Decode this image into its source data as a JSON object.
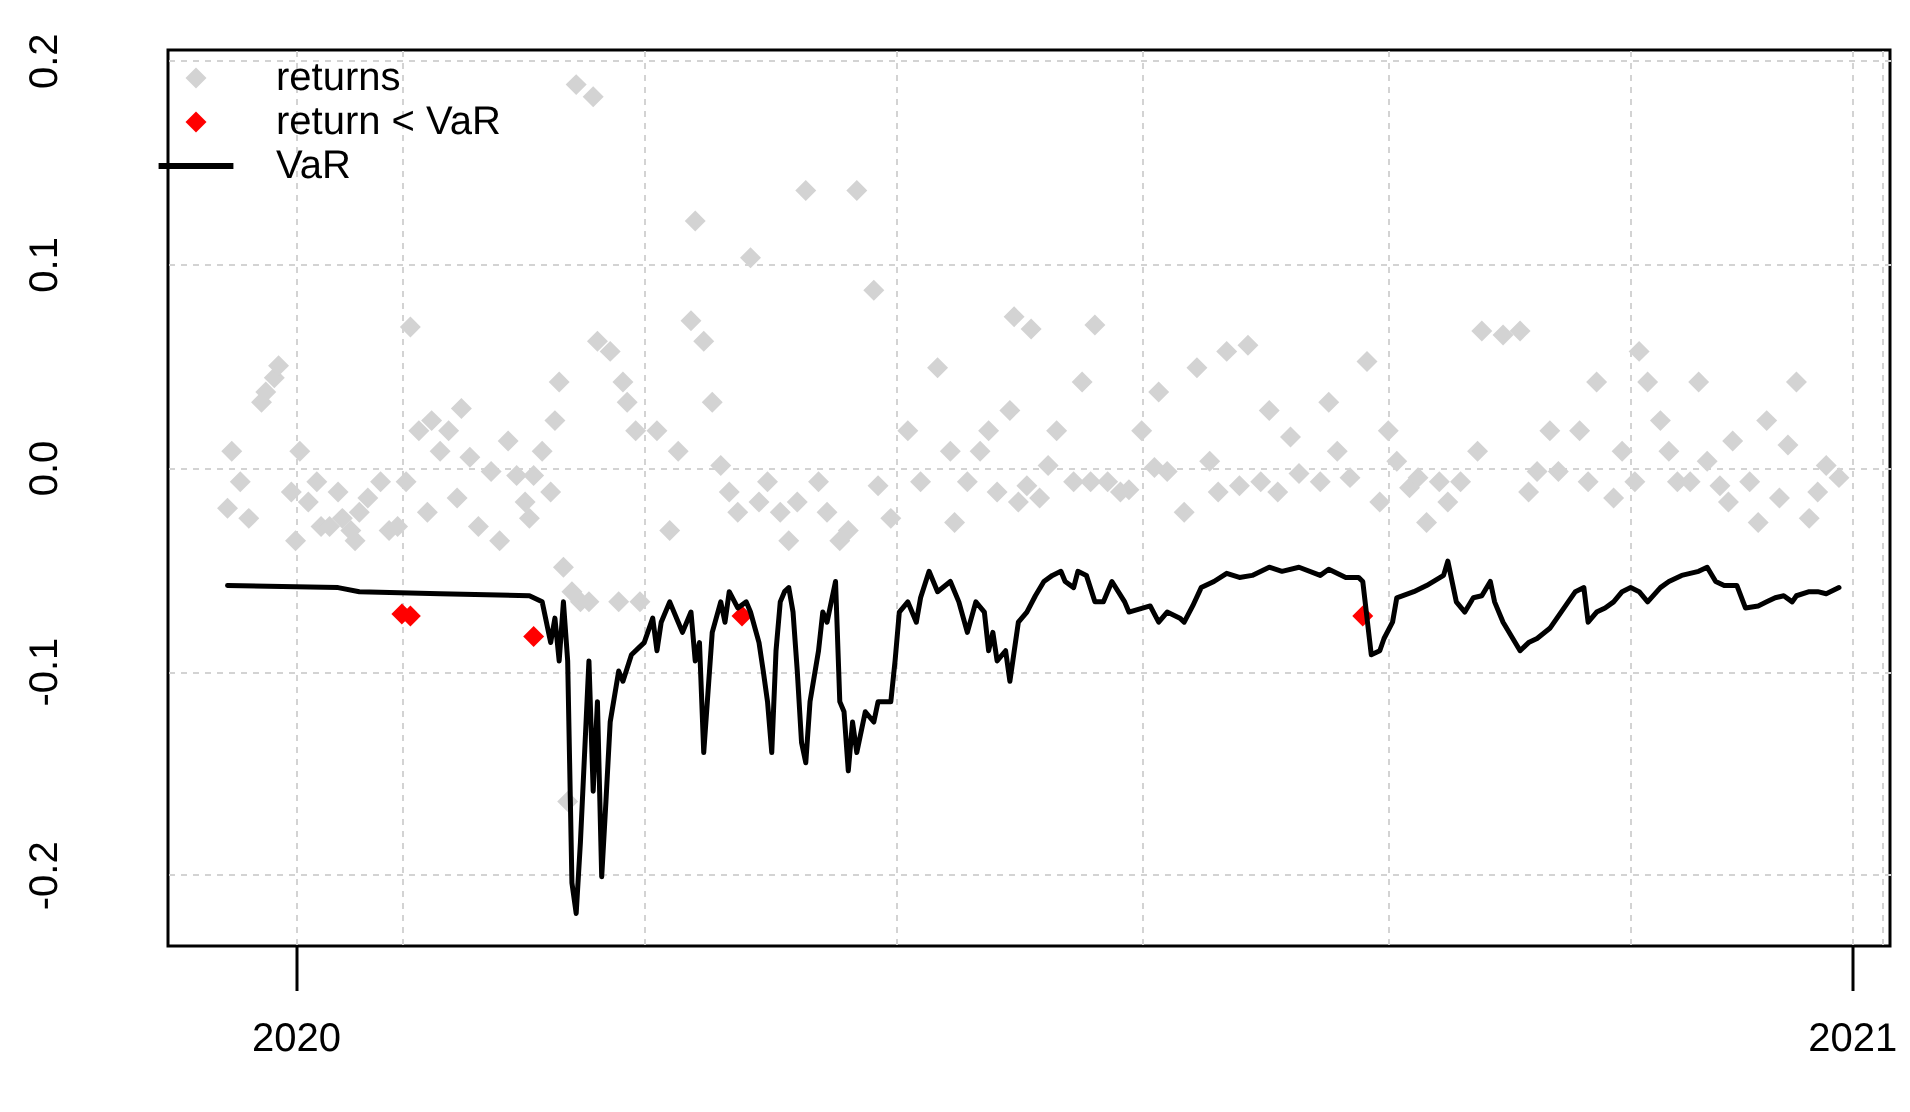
{
  "chart_data": {
    "type": "scatter",
    "xlim": [
      "2019-12-02",
      "2021-01-10"
    ],
    "xticks": [
      {
        "value": "2020",
        "label": "2020"
      },
      {
        "value": "2020-01-26",
        "label": null
      },
      {
        "value": "2020-03-23",
        "label": null
      },
      {
        "value": "2020-05-21",
        "label": null
      },
      {
        "value": "2020-07-18",
        "label": null
      },
      {
        "value": "2020-09-14",
        "label": null
      },
      {
        "value": "2020-11-10",
        "label": null
      },
      {
        "value": "2021",
        "label": "2021"
      },
      {
        "value": "2021-01-08",
        "label": null
      }
    ],
    "ylim": [
      -0.235,
      0.205
    ],
    "yticks": [
      -0.2,
      -0.1,
      {
        "value": 0,
        "label": "0.0"
      },
      0.1,
      0.2
    ],
    "grid": true,
    "legend": "top left",
    "marker": "diamond",
    "line_style": "solid",
    "series": [
      {
        "name": "returns",
        "color": "#d3d3d3",
        "x": [
          "2019-12-16",
          "2019-12-17",
          "2019-12-19",
          "2019-12-21",
          "2019-12-24",
          "2019-12-25",
          "2019-12-27",
          "2019-12-28",
          "2019-12-31",
          "2020-01-01",
          "2020-01-02",
          "2020-01-04",
          "2020-01-06",
          "2020-01-07",
          "2020-01-09",
          "2020-01-11",
          "2020-01-12",
          "2020-01-14",
          "2020-01-15",
          "2020-01-16",
          "2020-01-18",
          "2020-01-21",
          "2020-01-23",
          "2020-01-25",
          "2020-01-28",
          "2020-01-27",
          "2020-01-30",
          "2020-02-01",
          "2020-02-02",
          "2020-02-04",
          "2020-02-06",
          "2020-02-08",
          "2020-02-09",
          "2020-02-11",
          "2020-02-13",
          "2020-02-16",
          "2020-02-18",
          "2020-02-20",
          "2020-02-22",
          "2020-02-24",
          "2020-02-25",
          "2020-02-26",
          "2020-02-28",
          "2020-03-01",
          "2020-03-02",
          "2020-03-03",
          "2020-03-04",
          "2020-03-06",
          "2020-03-05",
          "2020-03-07",
          "2020-03-11",
          "2020-03-08",
          "2020-03-10",
          "2020-03-12",
          "2020-03-15",
          "2020-03-17",
          "2020-03-18",
          "2020-03-19",
          "2020-03-21",
          "2020-03-22",
          "2020-03-26",
          "2020-03-29",
          "2020-03-31",
          "2020-04-03",
          "2020-04-04",
          "2020-04-06",
          "2020-04-08",
          "2020-04-10",
          "2020-04-12",
          "2020-04-14",
          "2020-04-17",
          "2020-04-19",
          "2020-04-21",
          "2020-04-24",
          "2020-04-26",
          "2020-04-28",
          "2020-04-30",
          "2020-05-03",
          "2020-05-05",
          "2020-05-08",
          "2020-05-10",
          "2020-05-12",
          "2020-05-16",
          "2020-05-17",
          "2020-05-20",
          "2020-05-24",
          "2020-05-27",
          "2020-05-31",
          "2020-06-03",
          "2020-06-04",
          "2020-06-07",
          "2020-06-10",
          "2020-06-12",
          "2020-06-14",
          "2020-06-17",
          "2020-06-19",
          "2020-06-21",
          "2020-06-24",
          "2020-06-26",
          "2020-06-28",
          "2020-06-18",
          "2020-06-22",
          "2020-07-02",
          "2020-07-04",
          "2020-07-06",
          "2020-07-07",
          "2020-07-10",
          "2020-07-13",
          "2020-07-15",
          "2020-07-18",
          "2020-07-21",
          "2020-07-22",
          "2020-07-24",
          "2020-07-28",
          "2020-07-31",
          "2020-08-03",
          "2020-08-05",
          "2020-08-07",
          "2020-08-10",
          "2020-08-12",
          "2020-08-15",
          "2020-08-17",
          "2020-08-19",
          "2020-08-22",
          "2020-08-24",
          "2020-08-29",
          "2020-08-31",
          "2020-09-02",
          "2020-09-05",
          "2020-09-09",
          "2020-09-12",
          "2020-09-14",
          "2020-09-16",
          "2020-09-19",
          "2020-09-21",
          "2020-09-23",
          "2020-09-26",
          "2020-09-28",
          "2020-10-01",
          "2020-10-05",
          "2020-10-06",
          "2020-10-11",
          "2020-10-15",
          "2020-10-17",
          "2020-10-19",
          "2020-10-22",
          "2020-10-24",
          "2020-10-29",
          "2020-10-31",
          "2020-11-02",
          "2020-11-06",
          "2020-11-08",
          "2020-11-11",
          "2020-11-12",
          "2020-11-14",
          "2020-11-17",
          "2020-11-19",
          "2020-11-21",
          "2020-11-24",
          "2020-11-26",
          "2020-11-28",
          "2020-12-01",
          "2020-12-03",
          "2020-12-04",
          "2020-12-08",
          "2020-12-10",
          "2020-12-12",
          "2020-12-15",
          "2020-12-17",
          "2020-12-19",
          "2020-12-22",
          "2020-12-24",
          "2020-12-26",
          "2020-12-29"
        ],
        "values": [
          -0.02,
          0.008,
          -0.007,
          -0.025,
          0.032,
          0.037,
          0.044,
          0.05,
          -0.012,
          -0.036,
          0.008,
          -0.017,
          -0.007,
          -0.029,
          -0.029,
          -0.012,
          -0.025,
          -0.031,
          -0.036,
          -0.022,
          -0.015,
          -0.007,
          -0.031,
          -0.029,
          0.069,
          -0.007,
          0.018,
          -0.022,
          0.023,
          0.008,
          0.018,
          -0.015,
          0.029,
          0.005,
          -0.029,
          -0.002,
          -0.036,
          0.013,
          -0.004,
          -0.017,
          -0.025,
          -0.004,
          0.008,
          -0.012,
          0.023,
          0.042,
          -0.049,
          -0.061,
          -0.164,
          0.188,
          0.182,
          -0.066,
          -0.066,
          0.062,
          0.057,
          -0.066,
          0.042,
          0.032,
          0.018,
          -0.066,
          0.018,
          -0.031,
          0.008,
          0.072,
          0.121,
          0.062,
          0.032,
          0.001,
          -0.012,
          -0.022,
          0.103,
          -0.017,
          -0.007,
          -0.022,
          -0.036,
          -0.017,
          0.136,
          -0.007,
          -0.022,
          -0.036,
          -0.031,
          0.136,
          0.087,
          -0.009,
          -0.025,
          0.018,
          -0.007,
          0.049,
          0.008,
          -0.027,
          -0.007,
          0.008,
          0.018,
          -0.012,
          0.028,
          -0.017,
          -0.009,
          -0.015,
          0.001,
          0.018,
          0.074,
          0.068,
          -0.007,
          0.042,
          -0.007,
          0.07,
          -0.007,
          -0.012,
          -0.011,
          0.018,
          0.0,
          0.037,
          -0.002,
          -0.022,
          0.049,
          0.003,
          -0.012,
          0.057,
          -0.009,
          0.06,
          -0.007,
          0.028,
          -0.012,
          0.015,
          -0.003,
          -0.007,
          0.032,
          0.008,
          -0.005,
          0.052,
          -0.017,
          0.018,
          0.003,
          -0.01,
          -0.005,
          -0.027,
          -0.007,
          -0.017,
          -0.007,
          0.008,
          0.067,
          0.065,
          0.067,
          -0.012,
          -0.002,
          0.018,
          -0.002,
          0.018,
          -0.007,
          0.042,
          -0.015,
          0.008,
          -0.007,
          0.057,
          0.042,
          0.023,
          0.008,
          -0.007,
          -0.007,
          0.042,
          0.003,
          -0.009,
          -0.017,
          0.013,
          -0.007,
          -0.027,
          0.023,
          -0.015,
          0.011,
          0.042,
          -0.025,
          -0.012,
          0.001,
          -0.005
        ]
      },
      {
        "name": "return < VaR",
        "color": "#ff0000",
        "x": [
          "2020-01-26",
          "2020-01-28",
          "2020-02-26",
          "2020-04-15",
          "2020-09-08"
        ],
        "values": [
          -0.072,
          -0.073,
          -0.083,
          -0.073,
          -0.073
        ]
      },
      {
        "name": "VaR",
        "type": "line",
        "marker": "none",
        "color": "#000000",
        "x": [
          "2019-12-16",
          "2020-01-11",
          "2020-01-16",
          "2020-02-04",
          "2020-02-25",
          "2020-02-28",
          "2020-03-01",
          "2020-03-02",
          "2020-03-03",
          "2020-03-04",
          "2020-03-05",
          "2020-03-06",
          "2020-03-07",
          "2020-03-08",
          "2020-03-10",
          "2020-03-11",
          "2020-03-12",
          "2020-03-13",
          "2020-03-14",
          "2020-03-15",
          "2020-03-17",
          "2020-03-18",
          "2020-03-20",
          "2020-03-22",
          "2020-03-23",
          "2020-03-25",
          "2020-03-26",
          "2020-03-27",
          "2020-03-29",
          "2020-03-31",
          "2020-04-01",
          "2020-04-03",
          "2020-04-04",
          "2020-04-05",
          "2020-04-06",
          "2020-04-08",
          "2020-04-10",
          "2020-04-11",
          "2020-04-12",
          "2020-04-14",
          "2020-04-16",
          "2020-04-17",
          "2020-04-19",
          "2020-04-20",
          "2020-04-21",
          "2020-04-22",
          "2020-04-23",
          "2020-04-24",
          "2020-04-25",
          "2020-04-26",
          "2020-04-27",
          "2020-04-28",
          "2020-04-29",
          "2020-04-30",
          "2020-05-01",
          "2020-05-03",
          "2020-05-04",
          "2020-05-05",
          "2020-05-06",
          "2020-05-07",
          "2020-05-08",
          "2020-05-09",
          "2020-05-10",
          "2020-05-11",
          "2020-05-12",
          "2020-05-14",
          "2020-05-16",
          "2020-05-17",
          "2020-05-20",
          "2020-05-21",
          "2020-05-22",
          "2020-05-24",
          "2020-05-26",
          "2020-05-27",
          "2020-05-29",
          "2020-05-31",
          "2020-06-03",
          "2020-06-05",
          "2020-06-07",
          "2020-06-09",
          "2020-06-11",
          "2020-06-12",
          "2020-06-13",
          "2020-06-14",
          "2020-06-16",
          "2020-06-17",
          "2020-06-19",
          "2020-06-21",
          "2020-06-23",
          "2020-06-25",
          "2020-06-27",
          "2020-06-29",
          "2020-06-30",
          "2020-07-02",
          "2020-07-03",
          "2020-07-05",
          "2020-07-07",
          "2020-07-09",
          "2020-07-11",
          "2020-07-14",
          "2020-07-15",
          "2020-07-20",
          "2020-07-22",
          "2020-07-24",
          "2020-07-27",
          "2020-07-28",
          "2020-07-30",
          "2020-08-01",
          "2020-08-04",
          "2020-08-07",
          "2020-08-10",
          "2020-08-13",
          "2020-08-17",
          "2020-08-20",
          "2020-08-24",
          "2020-08-29",
          "2020-08-31",
          "2020-09-04",
          "2020-09-07",
          "2020-09-08",
          "2020-09-10",
          "2020-09-12",
          "2020-09-13",
          "2020-09-15",
          "2020-09-16",
          "2020-09-20",
          "2020-09-23",
          "2020-09-27",
          "2020-09-28",
          "2020-09-30",
          "2020-10-02",
          "2020-10-04",
          "2020-10-06",
          "2020-10-08",
          "2020-10-09",
          "2020-10-11",
          "2020-10-13",
          "2020-10-15",
          "2020-10-17",
          "2020-10-19",
          "2020-10-22",
          "2020-10-24",
          "2020-10-26",
          "2020-10-28",
          "2020-10-30",
          "2020-10-31",
          "2020-11-02",
          "2020-11-04",
          "2020-11-06",
          "2020-11-08",
          "2020-11-10",
          "2020-11-12",
          "2020-11-14",
          "2020-11-17",
          "2020-11-19",
          "2020-11-22",
          "2020-11-26",
          "2020-11-28",
          "2020-11-30",
          "2020-12-02",
          "2020-12-05",
          "2020-12-07",
          "2020-12-10",
          "2020-12-12",
          "2020-12-14",
          "2020-12-16",
          "2020-12-18",
          "2020-12-19",
          "2020-12-22",
          "2020-12-24",
          "2020-12-26",
          "2020-12-29"
        ],
        "values": [
          -0.058,
          -0.059,
          -0.061,
          -0.062,
          -0.063,
          -0.066,
          -0.086,
          -0.074,
          -0.095,
          -0.066,
          -0.095,
          -0.204,
          -0.219,
          -0.184,
          -0.095,
          -0.159,
          -0.115,
          -0.201,
          -0.164,
          -0.125,
          -0.1,
          -0.105,
          -0.092,
          -0.088,
          -0.086,
          -0.074,
          -0.09,
          -0.076,
          -0.066,
          -0.076,
          -0.081,
          -0.071,
          -0.095,
          -0.086,
          -0.14,
          -0.081,
          -0.066,
          -0.076,
          -0.061,
          -0.069,
          -0.066,
          -0.071,
          -0.086,
          -0.1,
          -0.115,
          -0.14,
          -0.09,
          -0.066,
          -0.061,
          -0.059,
          -0.071,
          -0.1,
          -0.135,
          -0.145,
          -0.115,
          -0.09,
          -0.071,
          -0.076,
          -0.066,
          -0.056,
          -0.115,
          -0.12,
          -0.149,
          -0.125,
          -0.14,
          -0.12,
          -0.125,
          -0.115,
          -0.115,
          -0.095,
          -0.071,
          -0.066,
          -0.076,
          -0.064,
          -0.051,
          -0.061,
          -0.056,
          -0.066,
          -0.081,
          -0.066,
          -0.071,
          -0.09,
          -0.081,
          -0.095,
          -0.09,
          -0.105,
          -0.076,
          -0.071,
          -0.063,
          -0.056,
          -0.053,
          -0.051,
          -0.056,
          -0.059,
          -0.051,
          -0.053,
          -0.066,
          -0.066,
          -0.056,
          -0.066,
          -0.071,
          -0.068,
          -0.076,
          -0.071,
          -0.074,
          -0.076,
          -0.068,
          -0.059,
          -0.056,
          -0.052,
          -0.054,
          -0.053,
          -0.049,
          -0.051,
          -0.049,
          -0.053,
          -0.05,
          -0.054,
          -0.054,
          -0.056,
          -0.092,
          -0.09,
          -0.084,
          -0.076,
          -0.064,
          -0.061,
          -0.058,
          -0.053,
          -0.046,
          -0.066,
          -0.071,
          -0.064,
          -0.063,
          -0.056,
          -0.066,
          -0.076,
          -0.083,
          -0.09,
          -0.086,
          -0.084,
          -0.079,
          -0.073,
          -0.067,
          -0.061,
          -0.059,
          -0.076,
          -0.071,
          -0.069,
          -0.066,
          -0.061,
          -0.059,
          -0.061,
          -0.066,
          -0.059,
          -0.056,
          -0.053,
          -0.051,
          -0.049,
          -0.056,
          -0.058,
          -0.058,
          -0.069,
          -0.068,
          -0.066,
          -0.064,
          -0.063,
          -0.066,
          -0.063,
          -0.061,
          -0.061,
          -0.062,
          -0.059
        ]
      }
    ]
  }
}
